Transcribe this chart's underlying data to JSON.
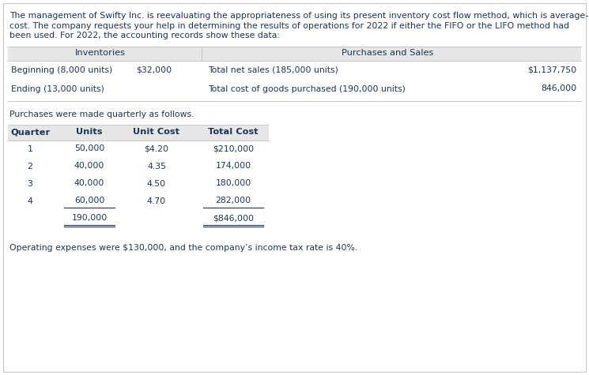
{
  "intro_lines": [
    "The management of Swifty Inc. is reevaluating the appropriateness of using its present inventory cost flow method, which is average-",
    "cost. The company requests your help in determining the results of operations for 2022 if either the FIFO or the LIFO method had",
    "been used. For 2022, the accounting records show these data:"
  ],
  "inv_header": "Inventories",
  "ps_header": "Purchases and Sales",
  "inv_row1_label": "Beginning (8,000 units)",
  "inv_row1_val": "$32,000",
  "inv_row2_label": "Ending (13,000 units)",
  "ps_row1_label": "Total net sales (185,000 units)",
  "ps_row1_val": "$1,137,750",
  "ps_row2_label": "Total cost of goods purchased (190,000 units)",
  "ps_row2_val": "846,000",
  "quarterly_label": "Purchases were made quarterly as follows.",
  "table_headers": [
    "Quarter",
    "Units",
    "Unit Cost",
    "Total Cost"
  ],
  "table_rows": [
    [
      "1",
      "50,000",
      "$4.20",
      "$210,000"
    ],
    [
      "2",
      "40,000",
      "4.35",
      "174,000"
    ],
    [
      "3",
      "40,000",
      "4.50",
      "180,000"
    ],
    [
      "4",
      "60,000",
      "4.70",
      "282,000"
    ]
  ],
  "total_units": "190,000",
  "total_cost": "$846,000",
  "footer_text": "Operating expenses were $130,000, and the company’s income tax rate is 40%.",
  "bg_color": "#ffffff",
  "border_color": "#c8c8c8",
  "header_bg": "#e6e6e6",
  "text_color": "#1c3557",
  "dark_color": "#1a1a1a",
  "font_size": 7.8,
  "header_font_size": 8.2
}
